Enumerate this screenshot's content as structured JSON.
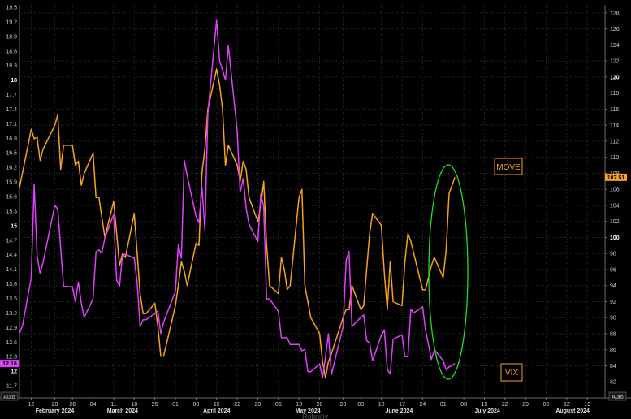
{
  "chart_data": {
    "type": "line",
    "left_axis": {
      "series": "VIX",
      "ylim": [
        11.45,
        19.55
      ],
      "ticks": [
        "19.5",
        "19.2",
        "18.9",
        "18.6",
        "18.3",
        "18",
        "17.7",
        "17.4",
        "17.1",
        "16.8",
        "16.5",
        "16.2",
        "15.9",
        "15.6",
        "15.3",
        "15",
        "14.7",
        "14.4",
        "14.1",
        "13.8",
        "13.5",
        "13.2",
        "12.9",
        "12.6",
        "12.3",
        "12",
        "11.7"
      ],
      "bold_ticks": [
        "18",
        "15",
        "12"
      ],
      "auto_label": "Auto"
    },
    "right_axis": {
      "series": "MOVE",
      "ylim": [
        80,
        129
      ],
      "ticks": [
        "128",
        "126",
        "124",
        "122",
        "120",
        "118",
        "116",
        "114",
        "112",
        "110",
        "108",
        "106",
        "104",
        "102",
        "100",
        "98",
        "96",
        "94",
        "92",
        "90",
        "88",
        "86",
        "84",
        "82"
      ],
      "bold_ticks": [
        "120",
        "100"
      ],
      "auto_label": "Auto"
    },
    "x_ticks": [
      {
        "label": "12",
        "date": "2024-02-12"
      },
      {
        "label": "20",
        "date": "2024-02-20"
      },
      {
        "label": "26",
        "date": "2024-02-26"
      },
      {
        "label": "04",
        "date": "2024-03-04"
      },
      {
        "label": "11",
        "date": "2024-03-11"
      },
      {
        "label": "18",
        "date": "2024-03-18"
      },
      {
        "label": "25",
        "date": "2024-03-25"
      },
      {
        "label": "01",
        "date": "2024-04-01"
      },
      {
        "label": "08",
        "date": "2024-04-08"
      },
      {
        "label": "15",
        "date": "2024-04-15"
      },
      {
        "label": "22",
        "date": "2024-04-22"
      },
      {
        "label": "29",
        "date": "2024-04-29"
      },
      {
        "label": "06",
        "date": "2024-05-06"
      },
      {
        "label": "13",
        "date": "2024-05-13"
      },
      {
        "label": "20",
        "date": "2024-05-20"
      },
      {
        "label": "28",
        "date": "2024-05-28"
      },
      {
        "label": "03",
        "date": "2024-06-03"
      },
      {
        "label": "10",
        "date": "2024-06-10"
      },
      {
        "label": "17",
        "date": "2024-06-17"
      },
      {
        "label": "24",
        "date": "2024-06-24"
      },
      {
        "label": "01",
        "date": "2024-07-01"
      },
      {
        "label": "08",
        "date": "2024-07-08"
      },
      {
        "label": "15",
        "date": "2024-07-15"
      },
      {
        "label": "22",
        "date": "2024-07-22"
      },
      {
        "label": "29",
        "date": "2024-07-29"
      },
      {
        "label": "05",
        "date": "2024-08-05"
      },
      {
        "label": "12",
        "date": "2024-08-12"
      },
      {
        "label": "19",
        "date": "2024-08-19"
      }
    ],
    "months": [
      {
        "label": "February 2024",
        "date": "2024-02-20"
      },
      {
        "label": "March 2024",
        "date": "2024-03-14"
      },
      {
        "label": "April 2024",
        "date": "2024-04-15"
      },
      {
        "label": "May 2024",
        "date": "2024-05-16"
      },
      {
        "label": "June 2024",
        "date": "2024-06-16"
      },
      {
        "label": "July 2024",
        "date": "2024-07-16"
      },
      {
        "label": "August 2024",
        "date": "2024-08-14"
      }
    ],
    "x_range": [
      "2024-02-08",
      "2024-08-25"
    ],
    "series": [
      {
        "name": "MOVE",
        "axis": "right",
        "color": "#f7a21b",
        "last_value": "107.51",
        "points": [
          [
            "2024-02-08",
            106.2
          ],
          [
            "2024-02-09",
            108.0
          ],
          [
            "2024-02-12",
            113.5
          ],
          [
            "2024-02-13",
            112.3
          ],
          [
            "2024-02-14",
            112.5
          ],
          [
            "2024-02-15",
            109.6
          ],
          [
            "2024-02-16",
            111.0
          ],
          [
            "2024-02-20",
            114.0
          ],
          [
            "2024-02-21",
            115.3
          ],
          [
            "2024-02-22",
            108.5
          ],
          [
            "2024-02-23",
            111.5
          ],
          [
            "2024-02-26",
            111.5
          ],
          [
            "2024-02-27",
            109.0
          ],
          [
            "2024-02-28",
            109.5
          ],
          [
            "2024-02-29",
            106.5
          ],
          [
            "2024-03-01",
            108.0
          ],
          [
            "2024-03-04",
            110.5
          ],
          [
            "2024-03-05",
            105.0
          ],
          [
            "2024-03-06",
            105.0
          ],
          [
            "2024-03-07",
            102.5
          ],
          [
            "2024-03-08",
            100.0
          ],
          [
            "2024-03-11",
            104.5
          ],
          [
            "2024-03-12",
            100.5
          ],
          [
            "2024-03-13",
            96.5
          ],
          [
            "2024-03-14",
            98.0
          ],
          [
            "2024-03-15",
            97.5
          ],
          [
            "2024-03-18",
            103.0
          ],
          [
            "2024-03-19",
            98.0
          ],
          [
            "2024-03-20",
            93.0
          ],
          [
            "2024-03-21",
            90.5
          ],
          [
            "2024-03-22",
            90.5
          ],
          [
            "2024-03-25",
            91.8
          ],
          [
            "2024-03-26",
            89.0
          ],
          [
            "2024-03-27",
            85.2
          ],
          [
            "2024-03-28",
            85.2
          ],
          [
            "2024-04-01",
            91.5
          ],
          [
            "2024-04-02",
            94.0
          ],
          [
            "2024-04-03",
            97.0
          ],
          [
            "2024-04-04",
            95.8
          ],
          [
            "2024-04-05",
            94.0
          ],
          [
            "2024-04-08",
            99.3
          ],
          [
            "2024-04-09",
            99.0
          ],
          [
            "2024-04-10",
            108.0
          ],
          [
            "2024-04-11",
            111.0
          ],
          [
            "2024-04-12",
            116.0
          ],
          [
            "2024-04-15",
            121.0
          ],
          [
            "2024-04-16",
            119.0
          ],
          [
            "2024-04-17",
            116.0
          ],
          [
            "2024-04-18",
            109.0
          ],
          [
            "2024-04-19",
            111.5
          ],
          [
            "2024-04-22",
            109.0
          ],
          [
            "2024-04-23",
            107.0
          ],
          [
            "2024-04-24",
            109.5
          ],
          [
            "2024-04-25",
            108.5
          ],
          [
            "2024-04-26",
            105.0
          ],
          [
            "2024-04-29",
            102.0
          ],
          [
            "2024-04-30",
            104.0
          ],
          [
            "2024-05-01",
            107.0
          ],
          [
            "2024-05-02",
            99.0
          ],
          [
            "2024-05-03",
            94.0
          ],
          [
            "2024-05-06",
            93.0
          ],
          [
            "2024-05-07",
            97.5
          ],
          [
            "2024-05-08",
            96.0
          ],
          [
            "2024-05-09",
            93.5
          ],
          [
            "2024-05-10",
            94.0
          ],
          [
            "2024-05-13",
            105.0
          ],
          [
            "2024-05-14",
            106.0
          ],
          [
            "2024-05-15",
            94.0
          ],
          [
            "2024-05-16",
            92.0
          ],
          [
            "2024-05-17",
            90.0
          ],
          [
            "2024-05-20",
            88.0
          ],
          [
            "2024-05-21",
            84.5
          ],
          [
            "2024-05-22",
            82.5
          ],
          [
            "2024-05-23",
            84.5
          ],
          [
            "2024-05-24",
            85.5
          ],
          [
            "2024-05-28",
            90.0
          ],
          [
            "2024-05-29",
            91.0
          ],
          [
            "2024-05-30",
            91.0
          ],
          [
            "2024-05-31",
            94.0
          ],
          [
            "2024-06-03",
            91.0
          ],
          [
            "2024-06-04",
            91.5
          ],
          [
            "2024-06-05",
            96.0
          ],
          [
            "2024-06-06",
            100.5
          ],
          [
            "2024-06-07",
            103.0
          ],
          [
            "2024-06-10",
            101.5
          ],
          [
            "2024-06-11",
            95.5
          ],
          [
            "2024-06-12",
            91.0
          ],
          [
            "2024-06-13",
            97.0
          ],
          [
            "2024-06-14",
            92.0
          ],
          [
            "2024-06-17",
            91.5
          ],
          [
            "2024-06-18",
            97.0
          ],
          [
            "2024-06-19",
            100.5
          ],
          [
            "2024-06-20",
            99.5
          ],
          [
            "2024-06-21",
            98.0
          ],
          [
            "2024-06-24",
            93.5
          ],
          [
            "2024-06-25",
            93.5
          ],
          [
            "2024-06-26",
            95.0
          ],
          [
            "2024-06-27",
            96.5
          ],
          [
            "2024-06-28",
            97.5
          ],
          [
            "2024-07-01",
            95.0
          ],
          [
            "2024-07-02",
            98.5
          ],
          [
            "2024-07-03",
            105.5
          ],
          [
            "2024-07-05",
            107.5
          ]
        ]
      },
      {
        "name": "VIX",
        "axis": "left",
        "color": "#e040fb",
        "last_value": "12.16",
        "points": [
          [
            "2024-02-08",
            12.79
          ],
          [
            "2024-02-09",
            12.93
          ],
          [
            "2024-02-12",
            13.93
          ],
          [
            "2024-02-13",
            15.85
          ],
          [
            "2024-02-14",
            14.38
          ],
          [
            "2024-02-15",
            14.01
          ],
          [
            "2024-02-16",
            14.24
          ],
          [
            "2024-02-20",
            15.42
          ],
          [
            "2024-02-21",
            15.34
          ],
          [
            "2024-02-22",
            14.54
          ],
          [
            "2024-02-23",
            13.75
          ],
          [
            "2024-02-26",
            13.74
          ],
          [
            "2024-02-27",
            13.43
          ],
          [
            "2024-02-28",
            13.84
          ],
          [
            "2024-02-29",
            13.4
          ],
          [
            "2024-03-01",
            13.11
          ],
          [
            "2024-03-04",
            13.49
          ],
          [
            "2024-03-05",
            14.46
          ],
          [
            "2024-03-06",
            14.5
          ],
          [
            "2024-03-07",
            14.44
          ],
          [
            "2024-03-08",
            14.74
          ],
          [
            "2024-03-11",
            15.23
          ],
          [
            "2024-03-12",
            13.88
          ],
          [
            "2024-03-13",
            13.75
          ],
          [
            "2024-03-14",
            14.4
          ],
          [
            "2024-03-15",
            14.41
          ],
          [
            "2024-03-18",
            14.33
          ],
          [
            "2024-03-19",
            13.82
          ],
          [
            "2024-03-20",
            12.92
          ],
          [
            "2024-03-21",
            13.06
          ],
          [
            "2024-03-22",
            13.06
          ],
          [
            "2024-03-25",
            13.19
          ],
          [
            "2024-03-26",
            13.24
          ],
          [
            "2024-03-27",
            12.78
          ],
          [
            "2024-03-28",
            13.01
          ],
          [
            "2024-04-01",
            13.65
          ],
          [
            "2024-04-02",
            14.61
          ],
          [
            "2024-04-03",
            14.33
          ],
          [
            "2024-04-04",
            16.35
          ],
          [
            "2024-04-05",
            16.03
          ],
          [
            "2024-04-08",
            15.19
          ],
          [
            "2024-04-09",
            15.06
          ],
          [
            "2024-04-10",
            15.8
          ],
          [
            "2024-04-11",
            14.91
          ],
          [
            "2024-04-12",
            17.31
          ],
          [
            "2024-04-15",
            19.23
          ],
          [
            "2024-04-16",
            18.4
          ],
          [
            "2024-04-17",
            18.21
          ],
          [
            "2024-04-18",
            18.0
          ],
          [
            "2024-04-19",
            18.71
          ],
          [
            "2024-04-22",
            16.94
          ],
          [
            "2024-04-23",
            15.69
          ],
          [
            "2024-04-24",
            15.97
          ],
          [
            "2024-04-25",
            15.37
          ],
          [
            "2024-04-26",
            15.03
          ],
          [
            "2024-04-29",
            14.67
          ],
          [
            "2024-04-30",
            15.65
          ],
          [
            "2024-05-01",
            15.39
          ],
          [
            "2024-05-02",
            13.49
          ],
          [
            "2024-05-03",
            13.49
          ],
          [
            "2024-05-06",
            13.23
          ],
          [
            "2024-05-07",
            12.69
          ],
          [
            "2024-05-08",
            12.69
          ],
          [
            "2024-05-09",
            12.69
          ],
          [
            "2024-05-10",
            12.55
          ],
          [
            "2024-05-13",
            12.55
          ],
          [
            "2024-05-14",
            12.42
          ],
          [
            "2024-05-15",
            12.45
          ],
          [
            "2024-05-16",
            11.99
          ],
          [
            "2024-05-17",
            11.99
          ],
          [
            "2024-05-20",
            12.15
          ],
          [
            "2024-05-21",
            11.86
          ],
          [
            "2024-05-22",
            12.29
          ],
          [
            "2024-05-23",
            12.77
          ],
          [
            "2024-05-24",
            11.93
          ],
          [
            "2024-05-28",
            12.92
          ],
          [
            "2024-05-29",
            14.28
          ],
          [
            "2024-05-30",
            14.47
          ],
          [
            "2024-05-31",
            12.92
          ],
          [
            "2024-06-03",
            13.11
          ],
          [
            "2024-06-04",
            13.16
          ],
          [
            "2024-06-05",
            12.63
          ],
          [
            "2024-06-06",
            12.58
          ],
          [
            "2024-06-07",
            12.22
          ],
          [
            "2024-06-10",
            12.74
          ],
          [
            "2024-06-11",
            12.85
          ],
          [
            "2024-06-12",
            12.04
          ],
          [
            "2024-06-13",
            11.94
          ],
          [
            "2024-06-14",
            12.66
          ],
          [
            "2024-06-17",
            12.75
          ],
          [
            "2024-06-18",
            12.3
          ],
          [
            "2024-06-19",
            12.3
          ],
          [
            "2024-06-20",
            13.28
          ],
          [
            "2024-06-21",
            13.2
          ],
          [
            "2024-06-24",
            13.33
          ],
          [
            "2024-06-25",
            12.84
          ],
          [
            "2024-06-26",
            12.55
          ],
          [
            "2024-06-27",
            12.24
          ],
          [
            "2024-06-28",
            12.44
          ],
          [
            "2024-07-01",
            12.22
          ],
          [
            "2024-07-02",
            12.03
          ],
          [
            "2024-07-03",
            12.09
          ],
          [
            "2024-07-05",
            12.16
          ]
        ]
      }
    ],
    "annotations": {
      "move_label": "MOVE",
      "vix_label": "VIX",
      "highlight": "green ellipse around late June – early July 2024 MOVE spike"
    },
    "footer": "Refinitiv",
    "grid": true,
    "background": "#000000",
    "highlight_color": "#22dd22"
  }
}
